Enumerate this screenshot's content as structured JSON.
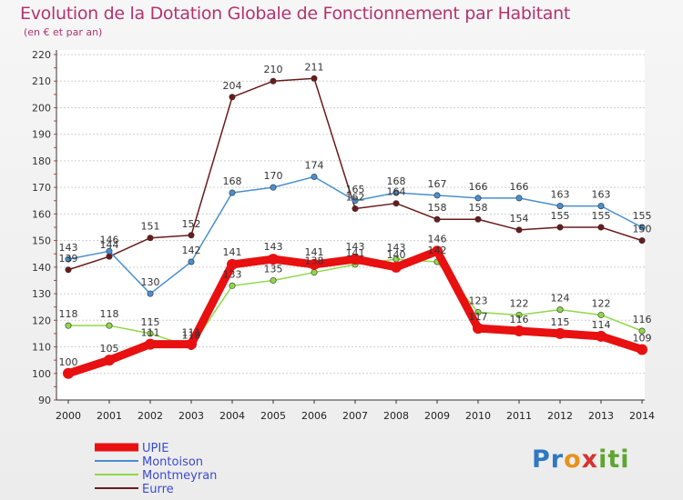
{
  "title": "Evolution de la Dotation Globale de Fonctionnement par Habitant",
  "subtitle": "(en € et par an)",
  "logo": [
    "Pr",
    "o",
    "x",
    "iti"
  ],
  "colors": {
    "title": "#b3336f",
    "axis": "#333333",
    "grid": "#cfcfcf"
  },
  "chart_data": {
    "type": "line",
    "title": "Evolution de la Dotation Globale de Fonctionnement par Habitant",
    "subtitle": "(en € et par an)",
    "xlabel": "",
    "ylabel": "",
    "x": [
      "2000",
      "2001",
      "2002",
      "2003",
      "2004",
      "2005",
      "2006",
      "2007",
      "2008",
      "2009",
      "2010",
      "2011",
      "2012",
      "2013",
      "2014"
    ],
    "ylim": [
      90,
      220
    ],
    "yticks": [
      90,
      100,
      110,
      120,
      130,
      140,
      150,
      160,
      170,
      180,
      190,
      200,
      210,
      220
    ],
    "grid": "horizontal",
    "legend": "bottom-left",
    "series": [
      {
        "name": "UPIE",
        "color": "#e81010",
        "values": [
          100,
          105,
          111,
          111,
          141,
          143,
          141,
          143,
          140,
          146,
          117,
          116,
          115,
          114,
          109
        ]
      },
      {
        "name": "Montoison",
        "color": "#4a8fce",
        "values": [
          143,
          146,
          130,
          142,
          168,
          170,
          174,
          165,
          168,
          167,
          166,
          166,
          163,
          163,
          155
        ]
      },
      {
        "name": "Montmeyran",
        "color": "#8fd848",
        "values": [
          118,
          118,
          115,
          110,
          133,
          135,
          138,
          141,
          143,
          142,
          123,
          122,
          124,
          122,
          116
        ]
      },
      {
        "name": "Eurre",
        "color": "#6b1a1a",
        "values": [
          139,
          144,
          151,
          152,
          204,
          210,
          211,
          162,
          164,
          158,
          158,
          154,
          155,
          155,
          150
        ]
      }
    ]
  }
}
